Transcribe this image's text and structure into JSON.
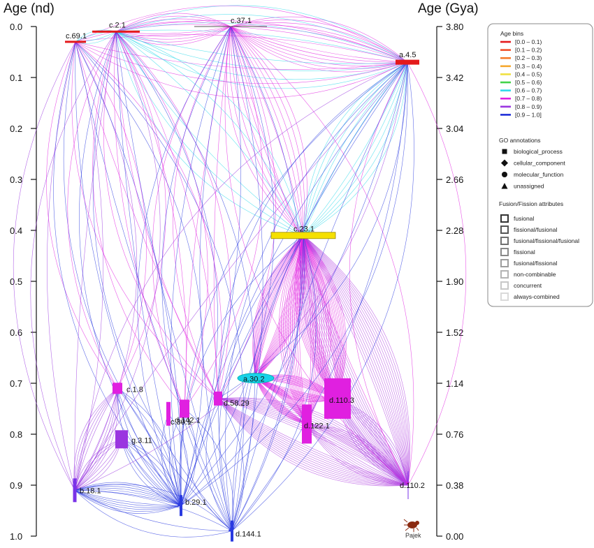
{
  "axes": {
    "left_title": "Age (nd)",
    "right_title": "Age (Gya)",
    "left_ticks": [
      "0.0",
      "0.1",
      "0.2",
      "0.3",
      "0.4",
      "0.5",
      "0.6",
      "0.7",
      "0.8",
      "0.9",
      "1.0"
    ],
    "right_ticks": [
      "3.80",
      "3.42",
      "3.04",
      "2.66",
      "2.28",
      "1.90",
      "1.52",
      "1.14",
      "0.76",
      "0.38",
      "0.00"
    ]
  },
  "nodes": [
    {
      "id": "c.2.1",
      "label": "c.2.1",
      "age": 0.01,
      "color": "#e41a1c",
      "shape": "bar"
    },
    {
      "id": "c.37.1",
      "label": "c.37.1",
      "age": 0.0,
      "color": "#555555",
      "shape": "line"
    },
    {
      "id": "c.69.1",
      "label": "c.69.1",
      "age": 0.03,
      "color": "#e41a1c",
      "shape": "bar"
    },
    {
      "id": "a.4.5",
      "label": "a.4.5",
      "age": 0.07,
      "color": "#e41a1c",
      "shape": "bar"
    },
    {
      "id": "c.23.1",
      "label": "c.23.1",
      "age": 0.41,
      "color": "#f5e000",
      "shape": "bar"
    },
    {
      "id": "a.30.2",
      "label": "a.30.2",
      "age": 0.69,
      "color": "#19d2e8",
      "shape": "ellipse"
    },
    {
      "id": "c.1.8",
      "label": "c.1.8",
      "age": 0.71,
      "color": "#e020e0",
      "shape": "square"
    },
    {
      "id": "d.58.29",
      "label": "d.58.29",
      "age": 0.73,
      "color": "#e020e0",
      "shape": "square"
    },
    {
      "id": "d.142.1",
      "label": "d.142.1",
      "age": 0.75,
      "color": "#e020e0",
      "shape": "square"
    },
    {
      "id": "c.30.1",
      "label": "c.30.1",
      "age": 0.76,
      "color": "#e020e0",
      "shape": "square"
    },
    {
      "id": "d.110.3",
      "label": "d.110.3",
      "age": 0.73,
      "color": "#e020e0",
      "shape": "square"
    },
    {
      "id": "d.122.1",
      "label": "d.122.1",
      "age": 0.78,
      "color": "#e020e0",
      "shape": "square"
    },
    {
      "id": "g.3.11",
      "label": "g.3.11",
      "age": 0.81,
      "color": "#9a35e0",
      "shape": "square"
    },
    {
      "id": "b.18.1",
      "label": "b.18.1",
      "age": 0.91,
      "color": "#7a33e8",
      "shape": "bar"
    },
    {
      "id": "b.29.1",
      "label": "b.29.1",
      "age": 0.94,
      "color": "#2a3ae0",
      "shape": "bar"
    },
    {
      "id": "d.110.2",
      "label": "d.110.2",
      "age": 0.9,
      "color": "#7a33e8",
      "shape": "line"
    },
    {
      "id": "d.144.1",
      "label": "d.144.1",
      "age": 0.99,
      "color": "#2a3ae0",
      "shape": "bar"
    }
  ],
  "edges": [
    {
      "from": "c.37.1",
      "to": "c.2.1",
      "color": "#e020e0",
      "count": 10
    },
    {
      "from": "c.37.1",
      "to": "a.4.5",
      "color": "#e020e0",
      "count": 12
    },
    {
      "from": "c.2.1",
      "to": "a.4.5",
      "color": "#2fd9ea",
      "count": 8
    },
    {
      "from": "c.69.1",
      "to": "a.4.5",
      "color": "#e020e0",
      "count": 6
    },
    {
      "from": "c.2.1",
      "to": "c.69.1",
      "color": "#2fd9ea",
      "count": 4
    },
    {
      "from": "c.37.1",
      "to": "c.23.1",
      "color": "#e020e0",
      "count": 10
    },
    {
      "from": "a.4.5",
      "to": "c.23.1",
      "color": "#2fd9ea",
      "count": 10
    },
    {
      "from": "c.2.1",
      "to": "c.23.1",
      "color": "#2fd9ea",
      "count": 6
    },
    {
      "from": "c.23.1",
      "to": "a.30.2",
      "color": "#e020e0",
      "count": 24
    },
    {
      "from": "c.23.1",
      "to": "d.110.3",
      "color": "#e020e0",
      "count": 24
    },
    {
      "from": "c.23.1",
      "to": "d.122.1",
      "color": "#e020e0",
      "count": 20
    },
    {
      "from": "c.23.1",
      "to": "d.110.2",
      "color": "#b040e0",
      "count": 28
    },
    {
      "from": "a.30.2",
      "to": "d.110.3",
      "color": "#e020e0",
      "count": 18
    },
    {
      "from": "a.30.2",
      "to": "d.122.1",
      "color": "#e020e0",
      "count": 18
    },
    {
      "from": "d.58.29",
      "to": "d.110.2",
      "color": "#b040e0",
      "count": 24
    },
    {
      "from": "d.122.1",
      "to": "d.110.2",
      "color": "#b040e0",
      "count": 14
    },
    {
      "from": "d.110.3",
      "to": "d.110.2",
      "color": "#9a35e0",
      "count": 12
    },
    {
      "from": "c.69.1",
      "to": "b.18.1",
      "color": "#9a35e0",
      "count": 4
    },
    {
      "from": "c.69.1",
      "to": "c.1.8",
      "color": "#e020e0",
      "count": 2
    },
    {
      "from": "c.69.1",
      "to": "b.29.1",
      "color": "#2a3ae0",
      "count": 4
    },
    {
      "from": "c.69.1",
      "to": "d.144.1",
      "color": "#2a3ae0",
      "count": 3
    },
    {
      "from": "c.69.1",
      "to": "d.58.29",
      "color": "#e020e0",
      "count": 3
    },
    {
      "from": "c.2.1",
      "to": "c.1.8",
      "color": "#e020e0",
      "count": 2
    },
    {
      "from": "c.2.1",
      "to": "d.142.1",
      "color": "#e020e0",
      "count": 4
    },
    {
      "from": "c.2.1",
      "to": "d.58.29",
      "color": "#e020e0",
      "count": 4
    },
    {
      "from": "c.2.1",
      "to": "b.18.1",
      "color": "#9a35e0",
      "count": 3
    },
    {
      "from": "c.2.1",
      "to": "b.29.1",
      "color": "#2a3ae0",
      "count": 3
    },
    {
      "from": "c.2.1",
      "to": "d.144.1",
      "color": "#2a3ae0",
      "count": 3
    },
    {
      "from": "c.37.1",
      "to": "d.58.29",
      "color": "#e020e0",
      "count": 3
    },
    {
      "from": "c.37.1",
      "to": "d.142.1",
      "color": "#e020e0",
      "count": 3
    },
    {
      "from": "c.37.1",
      "to": "b.29.1",
      "color": "#2a3ae0",
      "count": 4
    },
    {
      "from": "c.37.1",
      "to": "d.144.1",
      "color": "#2a3ae0",
      "count": 4
    },
    {
      "from": "c.37.1",
      "to": "d.110.2",
      "color": "#e020e0",
      "count": 3
    },
    {
      "from": "a.4.5",
      "to": "b.18.1",
      "color": "#9a35e0",
      "count": 3
    },
    {
      "from": "a.4.5",
      "to": "b.29.1",
      "color": "#2a3ae0",
      "count": 4
    },
    {
      "from": "a.4.5",
      "to": "d.144.1",
      "color": "#2a3ae0",
      "count": 5
    },
    {
      "from": "a.4.5",
      "to": "d.110.2",
      "color": "#e020e0",
      "count": 2
    },
    {
      "from": "a.4.5",
      "to": "d.58.29",
      "color": "#2a3ae0",
      "count": 3
    },
    {
      "from": "c.23.1",
      "to": "d.144.1",
      "color": "#2a3ae0",
      "count": 4
    },
    {
      "from": "c.23.1",
      "to": "b.29.1",
      "color": "#2a3ae0",
      "count": 3
    },
    {
      "from": "c.1.8",
      "to": "b.18.1",
      "color": "#9a35e0",
      "count": 10
    },
    {
      "from": "g.3.11",
      "to": "b.18.1",
      "color": "#9a35e0",
      "count": 6
    },
    {
      "from": "g.3.11",
      "to": "b.29.1",
      "color": "#2a3ae0",
      "count": 6
    },
    {
      "from": "b.18.1",
      "to": "b.29.1",
      "color": "#2a3ae0",
      "count": 12
    },
    {
      "from": "b.18.1",
      "to": "d.144.1",
      "color": "#2a3ae0",
      "count": 4
    },
    {
      "from": "c.1.8",
      "to": "b.29.1",
      "color": "#2a3ae0",
      "count": 6
    },
    {
      "from": "c.30.1",
      "to": "b.29.1",
      "color": "#2a3ae0",
      "count": 3
    },
    {
      "from": "d.142.1",
      "to": "b.29.1",
      "color": "#2a3ae0",
      "count": 3
    },
    {
      "from": "d.58.29",
      "to": "d.144.1",
      "color": "#2a3ae0",
      "count": 3
    },
    {
      "from": "d.142.1",
      "to": "d.144.1",
      "color": "#2a3ae0",
      "count": 2
    }
  ],
  "legend": {
    "age_bins_title": "Age bins",
    "age_bins": [
      {
        "label": "[0.0 – 0.1)",
        "color": "#e41a1c"
      },
      {
        "label": "[0.1 – 0.2)",
        "color": "#f0502a"
      },
      {
        "label": "[0.2 – 0.3)",
        "color": "#f57a2a"
      },
      {
        "label": "[0.3 – 0.4)",
        "color": "#f6a82f"
      },
      {
        "label": "[0.4 – 0.5)",
        "color": "#f0e040"
      },
      {
        "label": "[0.5 – 0.6)",
        "color": "#44d34a"
      },
      {
        "label": "[0.6 – 0.7)",
        "color": "#2fd9ea"
      },
      {
        "label": "[0.7 – 0.8)",
        "color": "#e020e0"
      },
      {
        "label": "[0.8 – 0.9)",
        "color": "#9a35e0"
      },
      {
        "label": "[0.9 – 1.0]",
        "color": "#1f2fd8"
      }
    ],
    "go_title": "GO annotations",
    "go_items": [
      {
        "label": "biological_process",
        "shape": "square"
      },
      {
        "label": "cellular_component",
        "shape": "diamond"
      },
      {
        "label": "molecular_function",
        "shape": "circle"
      },
      {
        "label": "unassigned",
        "shape": "triangle"
      }
    ],
    "fusion_title": "Fusion/Fission attributes",
    "fusion_items": [
      {
        "label": "fusional",
        "shade": "#333333"
      },
      {
        "label": "fissional/fusional",
        "shade": "#555555"
      },
      {
        "label": "fusional/fissional/fusional",
        "shade": "#707070"
      },
      {
        "label": "fissional",
        "shade": "#888888"
      },
      {
        "label": "fusional/fissional",
        "shade": "#9d9d9d"
      },
      {
        "label": "non-combinable",
        "shade": "#b4b4b4"
      },
      {
        "label": "concurrent",
        "shade": "#c8c8c8"
      },
      {
        "label": "always-combined",
        "shade": "#dadada"
      }
    ]
  },
  "watermark": "Pajek"
}
